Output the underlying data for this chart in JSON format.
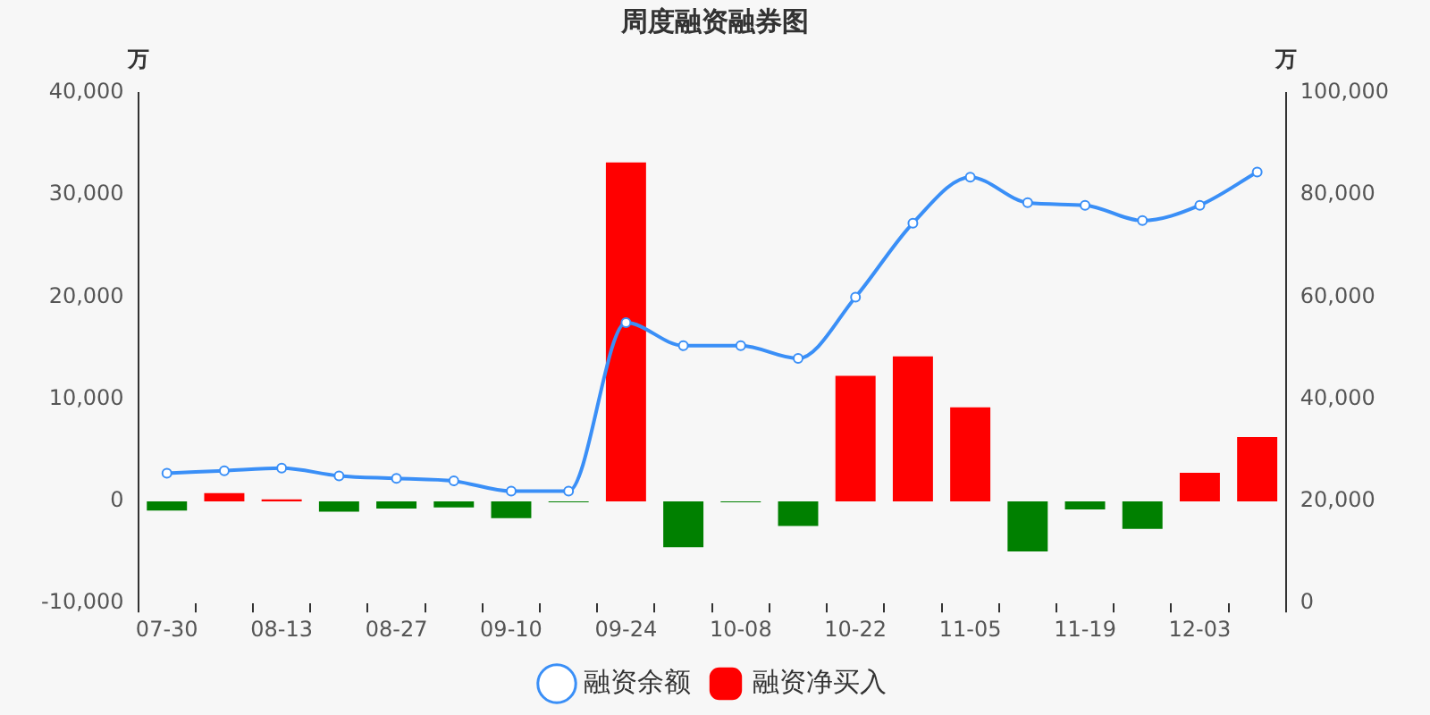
{
  "chart_data": {
    "type": "bar",
    "title": "周度融资融券图",
    "ylabel": "万",
    "y2label": "万",
    "categories": [
      "07-30",
      null,
      "08-13",
      null,
      "08-27",
      null,
      "09-10",
      null,
      "09-24",
      null,
      "10-08",
      null,
      "10-22",
      null,
      "11-05",
      null,
      "11-19",
      null,
      "12-03",
      null
    ],
    "series": [
      {
        "name": "融资余额",
        "type": "line",
        "axis": "y2",
        "color": "#3a8ff7",
        "marker": "circle",
        "values": [
          25500,
          26000,
          26500,
          25000,
          24500,
          24000,
          22000,
          22000,
          55000,
          50500,
          50500,
          48000,
          60000,
          74500,
          83500,
          78500,
          78000,
          75000,
          78000,
          84500
        ]
      },
      {
        "name": "融资净买入",
        "axis": "y",
        "color": "#ff0000",
        "colors": [
          "#008000",
          "#ff0000",
          "#ff0000",
          "#008000",
          "#008000",
          "#008000",
          "#008000",
          "#008000",
          "#ff0000",
          "#008000",
          "#008000",
          "#008000",
          "#ff0000",
          "#ff0000",
          "#ff0000",
          "#008000",
          "#008000",
          "#008000",
          "#ff0000",
          "#ff0000"
        ],
        "values": [
          -900,
          800,
          200,
          -1000,
          -700,
          -600,
          -1650,
          -100,
          33200,
          -4500,
          -100,
          -2400,
          12300,
          14200,
          9200,
          -4900,
          -800,
          -2700,
          2800,
          6300
        ]
      }
    ],
    "ylim": [
      -10000,
      40000
    ],
    "yticks": [
      {
        "value": -10000,
        "label": "-10,000"
      },
      0,
      {
        "value": 10000,
        "label": "10,000"
      },
      {
        "value": 20000,
        "label": "20,000"
      },
      {
        "value": 30000,
        "label": "30,000"
      },
      {
        "value": 40000,
        "label": "40,000"
      }
    ],
    "y2lim": [
      0,
      100000
    ],
    "y2ticks": [
      0,
      {
        "value": 20000,
        "label": "20,000"
      },
      {
        "value": 40000,
        "label": "40,000"
      },
      {
        "value": 60000,
        "label": "60,000"
      },
      {
        "value": 80000,
        "label": "80,000"
      },
      {
        "value": 100000,
        "label": "100,000"
      }
    ],
    "grid": false,
    "legend": "bottom"
  }
}
